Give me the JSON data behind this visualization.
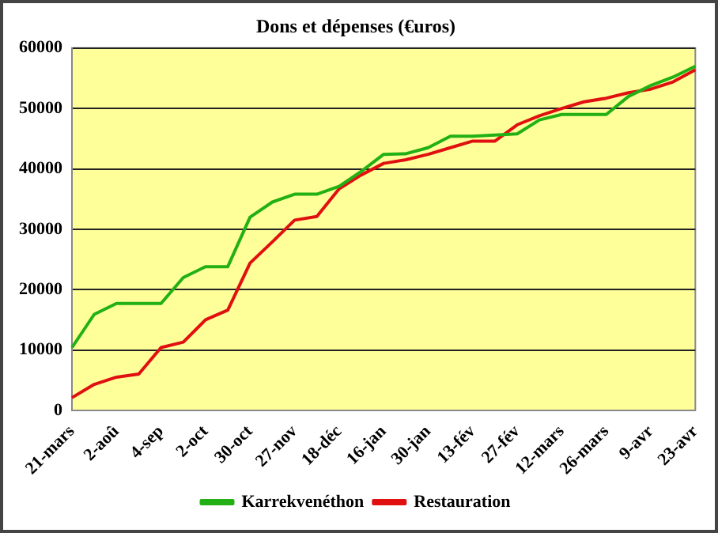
{
  "chart_data": {
    "type": "line",
    "title": "Dons et dépenses (€uros)",
    "categories": [
      "21-mars",
      null,
      "2-aoû",
      null,
      "4-sep",
      null,
      "2-oct",
      null,
      "30-oct",
      null,
      "27-nov",
      null,
      "18-déc",
      null,
      "16-jan",
      null,
      "30-jan",
      null,
      "13-fév",
      null,
      "27-fév",
      null,
      "12-mars",
      null,
      "26-mars",
      null,
      "9-avr",
      null,
      "23-avr"
    ],
    "series": [
      {
        "name": "Karrekvenéthon",
        "color": "#22b014",
        "values": [
          10400,
          15900,
          17700,
          17700,
          17700,
          22000,
          23800,
          23800,
          32000,
          34500,
          35800,
          35800,
          37100,
          39600,
          42400,
          42500,
          43500,
          45400,
          45400,
          45600,
          45800,
          48100,
          49000,
          49000,
          49000,
          52000,
          53800,
          55200,
          57000
        ]
      },
      {
        "name": "Restauration",
        "color": "#e01010",
        "values": [
          2100,
          4300,
          5500,
          6000,
          10400,
          11300,
          15000,
          16600,
          24400,
          27900,
          31500,
          32100,
          36700,
          39000,
          40900,
          41500,
          42400,
          43500,
          44600,
          44600,
          47300,
          48800,
          50000,
          51100,
          51700,
          52600,
          53200,
          54400,
          56400
        ]
      }
    ],
    "ylim": [
      0,
      60000
    ],
    "yticks": [
      0,
      10000,
      20000,
      30000,
      40000,
      50000,
      60000
    ],
    "grid": "y",
    "legend": "bottom",
    "marker": "none",
    "line_style": "solid"
  }
}
